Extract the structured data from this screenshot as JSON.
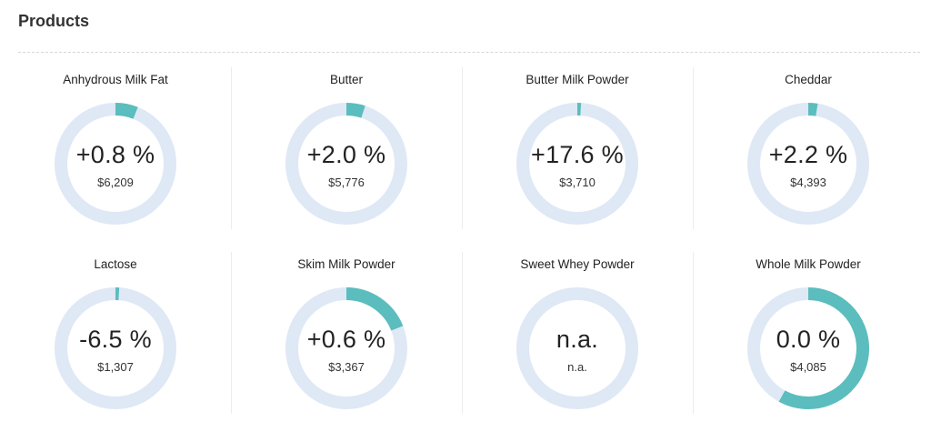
{
  "section": {
    "title": "Products"
  },
  "colors": {
    "ring_track": "#dfe8f5",
    "ring_fill": "#5bbdbd"
  },
  "products": [
    {
      "name": "Anhydrous Milk Fat",
      "change": "+0.8 %",
      "price": "$6,209",
      "fill_fraction": 0.06
    },
    {
      "name": "Butter",
      "change": "+2.0 %",
      "price": "$5,776",
      "fill_fraction": 0.05
    },
    {
      "name": "Butter Milk Powder",
      "change": "+17.6 %",
      "price": "$3,710",
      "fill_fraction": 0.01
    },
    {
      "name": "Cheddar",
      "change": "+2.2 %",
      "price": "$4,393",
      "fill_fraction": 0.025
    },
    {
      "name": "Lactose",
      "change": "-6.5 %",
      "price": "$1,307",
      "fill_fraction": 0.01
    },
    {
      "name": "Skim Milk Powder",
      "change": "+0.6 %",
      "price": "$3,367",
      "fill_fraction": 0.19
    },
    {
      "name": "Sweet Whey Powder",
      "change": "n.a.",
      "price": "n.a.",
      "fill_fraction": 0
    },
    {
      "name": "Whole Milk Powder",
      "change": "0.0 %",
      "price": "$4,085",
      "fill_fraction": 0.58
    }
  ]
}
